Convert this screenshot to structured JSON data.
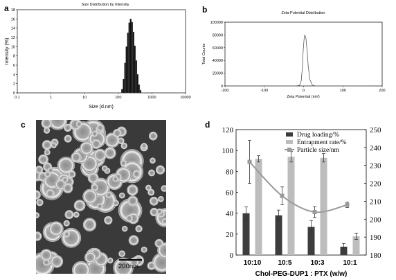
{
  "chart_data": [
    {
      "panel": "a",
      "type": "bar",
      "title": "Size Distribution by Intensity",
      "xlabel": "Size (d.nm)",
      "ylabel": "Intensity (%)",
      "xscale": "log",
      "xlim": [
        0.1,
        10000
      ],
      "ylim": [
        0,
        18
      ],
      "xticks": [
        "0.1",
        "1",
        "10",
        "100",
        "1000",
        "10000"
      ],
      "yticks": [
        "0",
        "2",
        "4",
        "6",
        "8",
        "10",
        "12",
        "14",
        "16",
        "18"
      ],
      "bars": [
        {
          "x": 130,
          "y": 0.8
        },
        {
          "x": 145,
          "y": 3.0
        },
        {
          "x": 160,
          "y": 6.5
        },
        {
          "x": 176,
          "y": 10.0
        },
        {
          "x": 194,
          "y": 13.0
        },
        {
          "x": 213,
          "y": 15.2
        },
        {
          "x": 234,
          "y": 16.0
        },
        {
          "x": 257,
          "y": 15.3
        },
        {
          "x": 283,
          "y": 13.2
        },
        {
          "x": 311,
          "y": 10.2
        },
        {
          "x": 342,
          "y": 7.0
        },
        {
          "x": 376,
          "y": 4.0
        },
        {
          "x": 413,
          "y": 1.8
        },
        {
          "x": 455,
          "y": 0.6
        }
      ]
    },
    {
      "panel": "b",
      "type": "line",
      "title": "Zeta Potential Distribution",
      "xlabel": "Zeta Potential (mV)",
      "ylabel": "Total Counts",
      "xlim": [
        -200,
        200
      ],
      "ylim": [
        0,
        100000
      ],
      "xticks": [
        "-200",
        "-100",
        "0",
        "100",
        "200"
      ],
      "yticks": [
        "0",
        "20000",
        "40000",
        "60000",
        "80000",
        "100000"
      ],
      "x": [
        -150,
        -20,
        -10,
        -6,
        -3,
        -1,
        1,
        3,
        6,
        9,
        12,
        16,
        22,
        30,
        80,
        150
      ],
      "y": [
        0,
        0,
        1000,
        8000,
        30000,
        55000,
        72000,
        80000,
        75000,
        55000,
        30000,
        10000,
        1500,
        0,
        0,
        0
      ]
    },
    {
      "panel": "d",
      "type": "bar",
      "xlabel": "Chol-PEG-DUP1 : PTX (w/w)",
      "categories": [
        "10:10",
        "10:5",
        "10:3",
        "10:1"
      ],
      "ylim": [
        0,
        120
      ],
      "yticks": [
        "0",
        "20",
        "40",
        "60",
        "80",
        "100",
        "120"
      ],
      "y2lim": [
        180,
        250
      ],
      "y2ticks": [
        "180",
        "190",
        "200",
        "210",
        "220",
        "230",
        "240",
        "250"
      ],
      "legend_position": "top-right",
      "series": [
        {
          "name": "Drug loading/%",
          "type": "bar",
          "color": "#3d3d3d",
          "values": [
            40,
            38,
            27,
            8
          ],
          "errors": [
            6,
            5,
            6,
            3
          ]
        },
        {
          "name": "Entrapment rate/%",
          "type": "bar",
          "color": "#bdbdbd",
          "values": [
            92,
            94,
            93,
            18
          ],
          "errors": [
            3,
            5,
            4,
            3
          ]
        },
        {
          "name": "Particle size/nm",
          "type": "line",
          "axis": "right",
          "color": "#9a9a9a",
          "values": [
            232,
            213,
            204,
            208
          ],
          "errors": [
            12,
            5,
            3,
            1.5
          ]
        }
      ]
    }
  ],
  "micrograph": {
    "panel_label": "c",
    "scale_bar_label": "200nm"
  },
  "panel_labels": {
    "a": "a",
    "b": "b",
    "d": "d"
  }
}
